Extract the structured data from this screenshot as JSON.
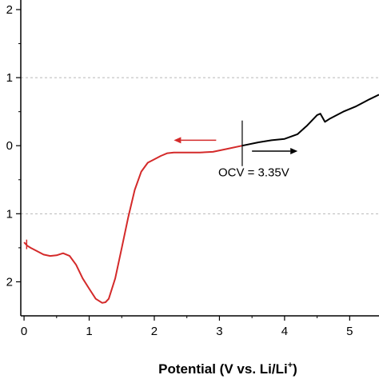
{
  "chart_data": {
    "type": "line",
    "title": "",
    "xlabel": "Potential (V vs. Li/Li",
    "xlabel_superscript": "+",
    "xlabel_suffix": ")",
    "ylabel": "",
    "xlim": [
      -0.05,
      5.45
    ],
    "ylim": [
      -2.5,
      2.0
    ],
    "x_ticks": [
      0,
      1,
      2,
      3,
      4,
      5
    ],
    "x_tick_labels": [
      "0",
      "1",
      "2",
      "3",
      "4",
      "5"
    ],
    "y_ticks": [
      2,
      1,
      0,
      -1,
      -2
    ],
    "y_tick_labels": [
      "2",
      "1",
      "0",
      "1",
      "2"
    ],
    "grid": "dashed horizontal at y = 1 and y = -1",
    "legend": "none",
    "series": [
      {
        "color": "#d42a2a",
        "x": [
          0.0,
          0.05,
          0.1,
          0.2,
          0.3,
          0.4,
          0.5,
          0.6,
          0.7,
          0.8,
          0.9,
          1.0,
          1.1,
          1.2,
          1.25,
          1.3,
          1.4,
          1.5,
          1.6,
          1.7,
          1.8,
          1.9,
          2.0,
          2.1,
          2.2,
          2.3,
          2.5,
          2.7,
          2.9,
          3.1,
          3.35
        ],
        "y": [
          -1.42,
          -1.47,
          -1.5,
          -1.55,
          -1.6,
          -1.62,
          -1.61,
          -1.58,
          -1.62,
          -1.75,
          -1.95,
          -2.1,
          -2.25,
          -2.31,
          -2.3,
          -2.25,
          -1.95,
          -1.5,
          -1.05,
          -0.65,
          -0.38,
          -0.25,
          -0.2,
          -0.15,
          -0.11,
          -0.1,
          -0.1,
          -0.1,
          -0.09,
          -0.05,
          0.0
        ]
      },
      {
        "color": "#000000",
        "x": [
          3.35,
          3.6,
          3.8,
          4.0,
          4.2,
          4.35,
          4.5,
          4.55,
          4.62,
          4.7,
          4.9,
          5.1,
          5.3,
          5.45
        ],
        "y": [
          0.0,
          0.05,
          0.08,
          0.1,
          0.17,
          0.3,
          0.45,
          0.47,
          0.35,
          0.4,
          0.5,
          0.58,
          0.68,
          0.75
        ]
      }
    ],
    "annotations": {
      "ocv_label": "OCV = 3.35V",
      "ocv_x": 3.35,
      "arrow_left": {
        "color": "#d42a2a",
        "from_x": 2.95,
        "to_x": 2.3,
        "y": 0.08
      },
      "arrow_right": {
        "color": "#000000",
        "from_x": 3.5,
        "to_x": 4.2,
        "y": -0.08
      }
    }
  }
}
